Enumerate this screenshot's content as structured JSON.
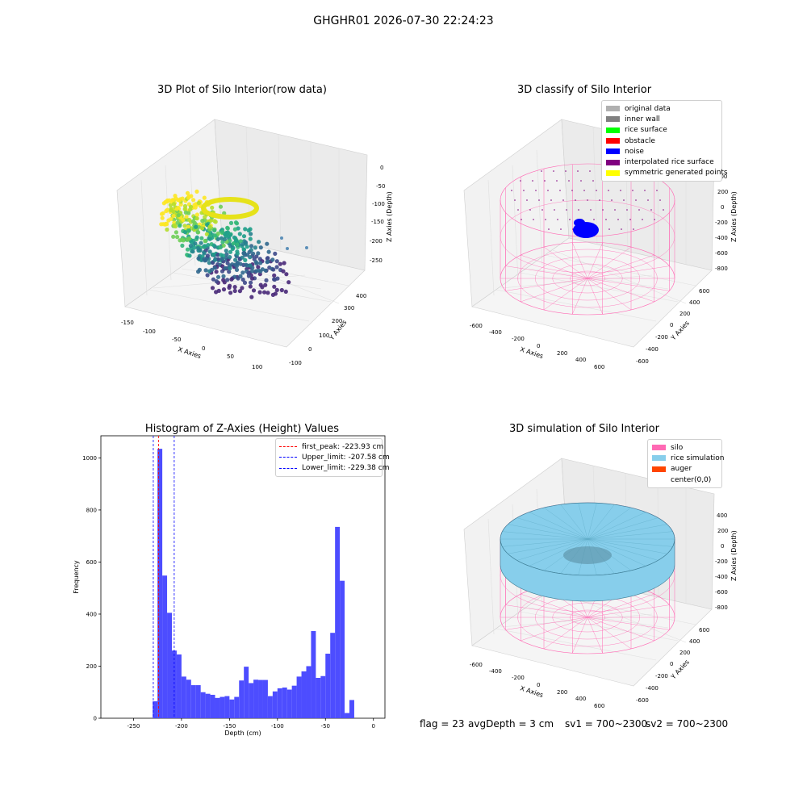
{
  "suptitle": "GHGHR01 2026-07-30 22:24:23",
  "status": {
    "flag": "flag = 23",
    "avg_depth": "avgDepth = 3 cm",
    "sv1": "sv1 = 700~2300",
    "sv2": "sv2 = 700~2300"
  },
  "chart_data": [
    {
      "id": "raw",
      "type": "scatter",
      "title": "3D Plot of Silo Interior(row data)",
      "xlabel": "X Axies",
      "ylabel": "Y Axies",
      "zlabel": "Z Axies (Depth)",
      "xticks": [
        "-150",
        "-100",
        "-50",
        "0",
        "50",
        "100"
      ],
      "yticks": [
        "-100",
        "0",
        "100",
        "200",
        "300",
        "400"
      ],
      "zticks": [
        "0",
        "-50",
        "-100",
        "-150",
        "-200",
        "-250"
      ],
      "colormap": "viridis"
    },
    {
      "id": "classify",
      "type": "scatter",
      "title": "3D classify of Silo Interior",
      "xlabel": "X Axies",
      "ylabel": "Y Axies",
      "zlabel": "Z Axies (Depth)",
      "xticks": [
        "-600",
        "-400",
        "-200",
        "0",
        "200",
        "400",
        "600"
      ],
      "yticks": [
        "-600",
        "-400",
        "-200",
        "0",
        "200",
        "400",
        "600"
      ],
      "zticks": [
        "400",
        "200",
        "0",
        "-200",
        "-400",
        "-600",
        "-800"
      ],
      "legend": [
        {
          "label": "original data",
          "color": "#b0b0b0"
        },
        {
          "label": "inner wall",
          "color": "#808080"
        },
        {
          "label": "rice surface",
          "color": "#00ff00"
        },
        {
          "label": "obstacle",
          "color": "#ff0000"
        },
        {
          "label": "noise",
          "color": "#0000ff"
        },
        {
          "label": "interpolated rice surface",
          "color": "#800080"
        },
        {
          "label": "symmetric generated points",
          "color": "#ffff00"
        }
      ]
    },
    {
      "id": "histogram",
      "type": "bar",
      "title": "Histogram of Z-Axies (Height) Values",
      "xlabel": "Depth (cm)",
      "ylabel": "Frequency",
      "xlim": [
        -284,
        12
      ],
      "ylim": [
        0,
        1085
      ],
      "xticks": [
        -250,
        -200,
        -150,
        -100,
        -50,
        0
      ],
      "yticks": [
        0,
        200,
        400,
        600,
        800,
        1000
      ],
      "bin_width": 5,
      "bar_color": "#4d4dff",
      "bins": [
        {
          "x": -230,
          "v": 65
        },
        {
          "x": -225,
          "v": 1035
        },
        {
          "x": -220,
          "v": 548
        },
        {
          "x": -215,
          "v": 405
        },
        {
          "x": -210,
          "v": 260
        },
        {
          "x": -205,
          "v": 245
        },
        {
          "x": -200,
          "v": 160
        },
        {
          "x": -195,
          "v": 148
        },
        {
          "x": -190,
          "v": 127
        },
        {
          "x": -185,
          "v": 127
        },
        {
          "x": -180,
          "v": 100
        },
        {
          "x": -175,
          "v": 94
        },
        {
          "x": -170,
          "v": 90
        },
        {
          "x": -165,
          "v": 78
        },
        {
          "x": -160,
          "v": 82
        },
        {
          "x": -155,
          "v": 85
        },
        {
          "x": -150,
          "v": 72
        },
        {
          "x": -145,
          "v": 82
        },
        {
          "x": -140,
          "v": 145
        },
        {
          "x": -135,
          "v": 198
        },
        {
          "x": -130,
          "v": 135
        },
        {
          "x": -125,
          "v": 148
        },
        {
          "x": -120,
          "v": 147
        },
        {
          "x": -115,
          "v": 147
        },
        {
          "x": -110,
          "v": 85
        },
        {
          "x": -105,
          "v": 103
        },
        {
          "x": -100,
          "v": 115
        },
        {
          "x": -95,
          "v": 118
        },
        {
          "x": -90,
          "v": 110
        },
        {
          "x": -85,
          "v": 125
        },
        {
          "x": -80,
          "v": 160
        },
        {
          "x": -75,
          "v": 180
        },
        {
          "x": -70,
          "v": 200
        },
        {
          "x": -65,
          "v": 335
        },
        {
          "x": -60,
          "v": 155
        },
        {
          "x": -55,
          "v": 162
        },
        {
          "x": -50,
          "v": 248
        },
        {
          "x": -45,
          "v": 328
        },
        {
          "x": -40,
          "v": 735
        },
        {
          "x": -35,
          "v": 528
        },
        {
          "x": -30,
          "v": 20
        },
        {
          "x": -25,
          "v": 70
        }
      ],
      "vlines": [
        {
          "label": "first_peak: -223.93 cm",
          "x": -223.93,
          "color": "#ff0000"
        },
        {
          "label": "Upper_limit: -207.58 cm",
          "x": -207.58,
          "color": "#0000ff"
        },
        {
          "label": "Lower_limit: -229.38 cm",
          "x": -229.38,
          "color": "#0000ff"
        }
      ]
    },
    {
      "id": "simulation",
      "type": "scatter",
      "title": "3D simulation of Silo Interior",
      "xlabel": "X Axies",
      "ylabel": "Y Axies",
      "zlabel": "Z Axies (Depth)",
      "xticks": [
        "-600",
        "-400",
        "-200",
        "0",
        "200",
        "400",
        "600"
      ],
      "yticks": [
        "-600",
        "-400",
        "-200",
        "0",
        "200",
        "400",
        "600"
      ],
      "zticks": [
        "400",
        "200",
        "0",
        "-200",
        "-400",
        "-600",
        "-800"
      ],
      "legend": [
        {
          "label": "silo",
          "color": "#ff69b4"
        },
        {
          "label": "rice simulation",
          "color": "#87ceeb"
        },
        {
          "label": "auger",
          "color": "#ff4500"
        },
        {
          "label": "center(0,0)",
          "color": "#ffffff"
        }
      ]
    }
  ]
}
